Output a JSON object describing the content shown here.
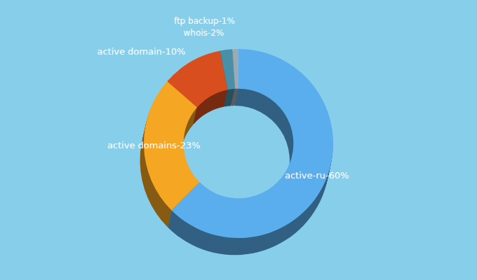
{
  "chart_data": {
    "type": "donut",
    "categories": [
      "active-ru-60%",
      "active domains-23%",
      "active domain-10%",
      "whois-2%",
      "ftp backup-1%"
    ],
    "values": [
      60,
      23,
      10,
      2,
      1
    ],
    "colors": [
      "#5aaeee",
      "#f5a623",
      "#d94e1f",
      "#4a8fa8",
      "#9aabb5"
    ]
  }
}
